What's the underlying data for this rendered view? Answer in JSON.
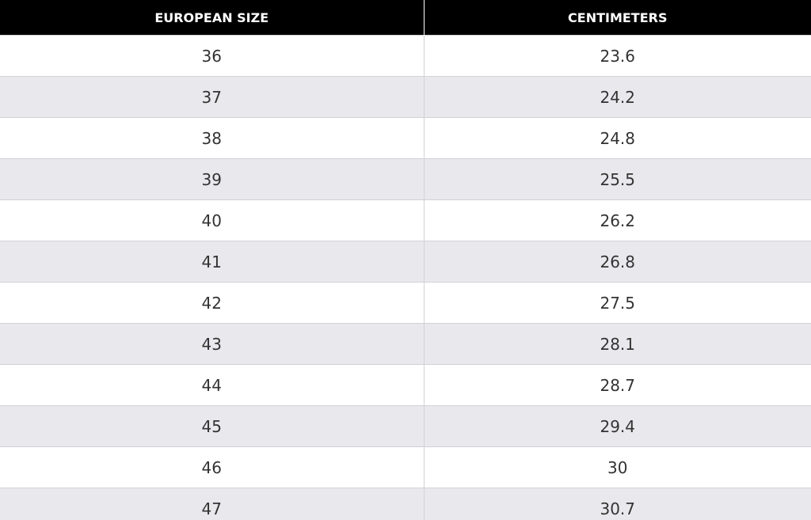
{
  "table": {
    "header": [
      "EUROPEAN SIZE",
      "CENTIMETERS"
    ],
    "rows": [
      [
        "36",
        "23.6"
      ],
      [
        "37",
        "24.2"
      ],
      [
        "38",
        "24.8"
      ],
      [
        "39",
        "25.5"
      ],
      [
        "40",
        "26.2"
      ],
      [
        "41",
        "26.8"
      ],
      [
        "42",
        "27.5"
      ],
      [
        "43",
        "28.1"
      ],
      [
        "44",
        "28.7"
      ],
      [
        "45",
        "29.4"
      ],
      [
        "46",
        "30"
      ],
      [
        "47",
        "30.7"
      ]
    ]
  }
}
